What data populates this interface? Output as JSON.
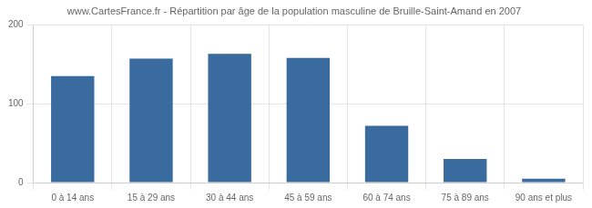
{
  "chart_data": {
    "type": "bar",
    "title": "www.CartesFrance.fr - Répartition par âge de la population masculine de Bruille-Saint-Amand en 2007",
    "categories": [
      "0 à 14 ans",
      "15 à 29 ans",
      "30 à 44 ans",
      "45 à 59 ans",
      "60 à 74 ans",
      "75 à 89 ans",
      "90 ans et plus"
    ],
    "values": [
      135,
      157,
      163,
      158,
      72,
      30,
      5
    ],
    "color": "#3a6b9e",
    "ylim": [
      0,
      200
    ],
    "yticks": [
      0,
      100,
      200
    ],
    "grid": true
  }
}
